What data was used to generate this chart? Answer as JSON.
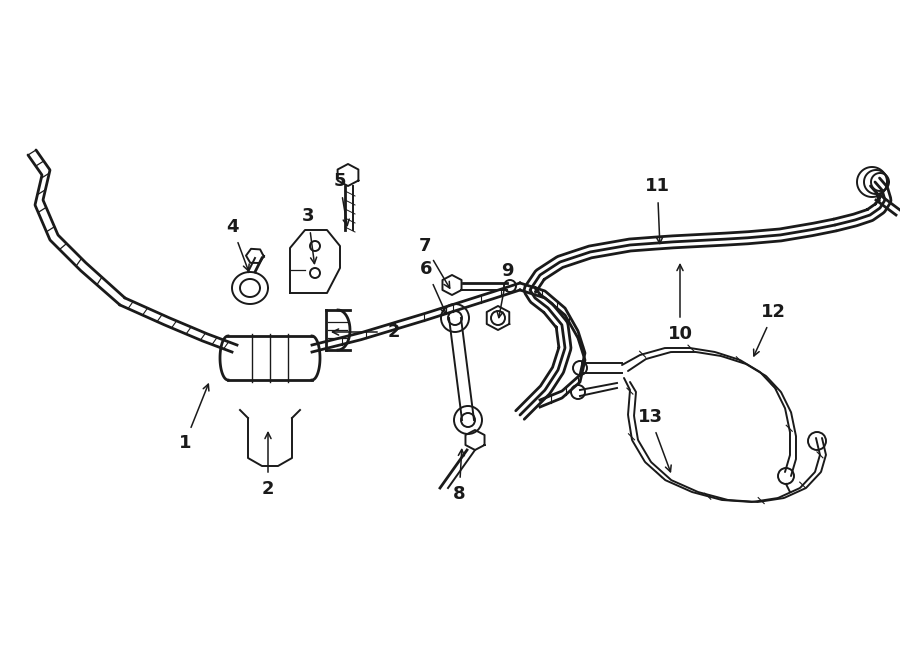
{
  "bg_color": "#ffffff",
  "line_color": "#1a1a1a",
  "figsize": [
    9.0,
    6.61
  ],
  "dpi": 100,
  "lw": 1.4,
  "lw2": 2.0,
  "font_size": 13
}
